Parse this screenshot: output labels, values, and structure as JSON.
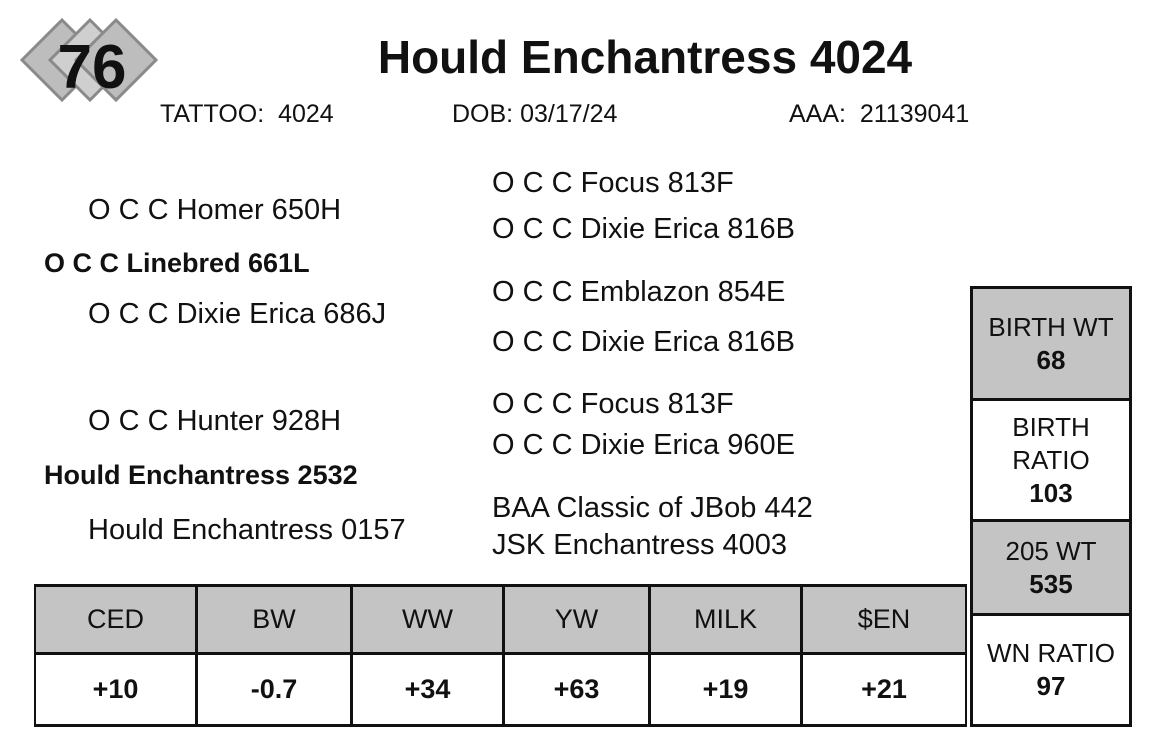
{
  "lot": "76",
  "title": "Hould Enchantress 4024",
  "info": [
    {
      "label": "TATTOO:",
      "value": "4024"
    },
    {
      "label": "DOB:",
      "value": "03/17/24"
    },
    {
      "label": "AAA:",
      "value": "21139041"
    }
  ],
  "pedigree": {
    "sire_sire": "O C C Homer 650H",
    "sire": "O C C Linebred 661L",
    "sire_dam": "O C C Dixie Erica 686J",
    "dam_sire": "O C C Hunter 928H",
    "dam": "Hould Enchantress 2532",
    "dam_dam": "Hould Enchantress 0157",
    "outer": [
      "O C C Focus 813F",
      "O C C Dixie Erica 816B",
      "O C C Emblazon 854E",
      "O C C Dixie Erica 816B",
      "O C C Focus 813F",
      "O C C Dixie Erica 960E",
      "BAA Classic of JBob 442",
      "JSK Enchantress 4003"
    ]
  },
  "epds": {
    "headers": [
      "CED",
      "BW",
      "WW",
      "YW",
      "MILK",
      "$EN"
    ],
    "values": [
      "+10",
      "-0.7",
      "+34",
      "+63",
      "+19",
      "+21"
    ]
  },
  "stats": [
    {
      "label": "BIRTH WT",
      "value": "68"
    },
    {
      "label": "BIRTH RATIO",
      "value": "103"
    },
    {
      "label": "205 WT",
      "value": "535"
    },
    {
      "label": "WN RATIO",
      "value": "97"
    }
  ]
}
